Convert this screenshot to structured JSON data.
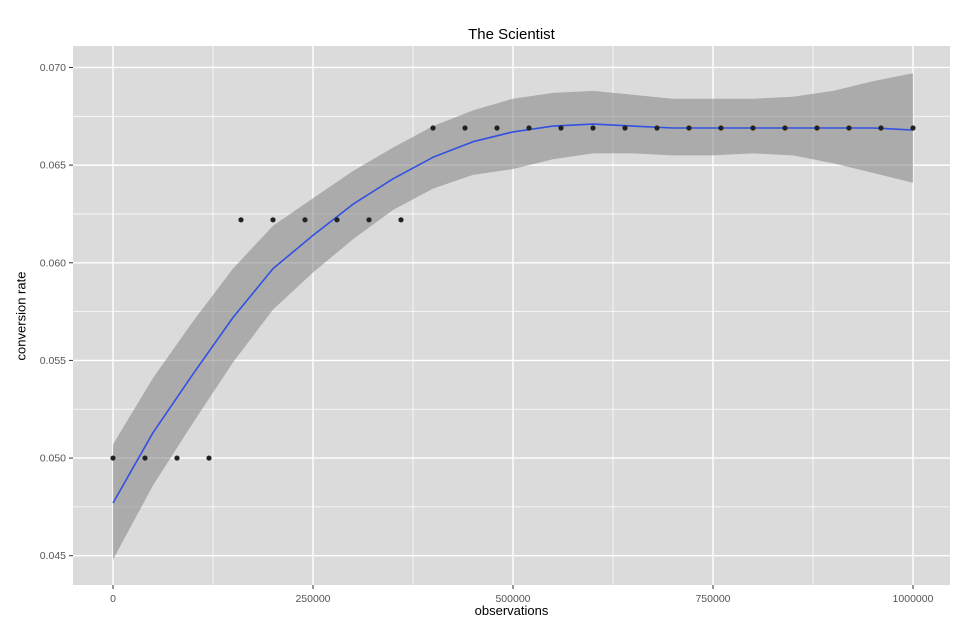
{
  "chart_data": {
    "type": "scatter",
    "title": "The Scientist",
    "xlabel": "observations",
    "ylabel": "conversion rate",
    "x_ticks": [
      0,
      250000,
      500000,
      750000,
      1000000
    ],
    "x_tick_labels": [
      "0",
      "250000",
      "500000",
      "750000",
      "1000000"
    ],
    "y_ticks": [
      0.045,
      0.05,
      0.055,
      0.06,
      0.065,
      0.07
    ],
    "y_tick_labels": [
      "0.045",
      "0.050",
      "0.055",
      "0.060",
      "0.065",
      "0.070"
    ],
    "x_minor_ticks": [
      125000,
      375000,
      625000,
      875000
    ],
    "y_minor_ticks": [
      0.0475,
      0.0525,
      0.0575,
      0.0625,
      0.0675
    ],
    "xlim": [
      -50000,
      1046250
    ],
    "ylim": [
      0.0435,
      0.0711
    ],
    "grid": true,
    "legend": "none",
    "points": {
      "x": [
        0,
        40000,
        80000,
        120000,
        160000,
        200000,
        240000,
        280000,
        320000,
        360000,
        400000,
        440000,
        480000,
        520000,
        560000,
        600000,
        640000,
        680000,
        720000,
        760000,
        800000,
        840000,
        880000,
        920000,
        960000,
        1000000
      ],
      "y": [
        0.05,
        0.05,
        0.05,
        0.05,
        0.0622,
        0.0622,
        0.0622,
        0.0622,
        0.0622,
        0.0622,
        0.0669,
        0.0669,
        0.0669,
        0.0669,
        0.0669,
        0.0669,
        0.0669,
        0.0669,
        0.0669,
        0.0669,
        0.0669,
        0.0669,
        0.0669,
        0.0669,
        0.0669,
        0.0669
      ]
    },
    "smooth": {
      "x": [
        0,
        50000,
        100000,
        150000,
        200000,
        250000,
        300000,
        350000,
        400000,
        450000,
        500000,
        550000,
        600000,
        650000,
        700000,
        750000,
        800000,
        850000,
        900000,
        950000,
        1000000
      ],
      "y": [
        0.0477,
        0.0513,
        0.0543,
        0.0572,
        0.0597,
        0.0614,
        0.063,
        0.0643,
        0.0654,
        0.0662,
        0.0667,
        0.067,
        0.0671,
        0.067,
        0.0669,
        0.0669,
        0.0669,
        0.0669,
        0.0669,
        0.0669,
        0.0668
      ],
      "upper": [
        0.0507,
        0.0541,
        0.057,
        0.0597,
        0.0619,
        0.0633,
        0.0647,
        0.0659,
        0.067,
        0.0678,
        0.0684,
        0.0687,
        0.0688,
        0.0686,
        0.0684,
        0.0684,
        0.0684,
        0.0685,
        0.0688,
        0.0693,
        0.0697
      ],
      "lower": [
        0.0448,
        0.0486,
        0.0518,
        0.0549,
        0.0576,
        0.0595,
        0.0612,
        0.0627,
        0.0638,
        0.0645,
        0.0648,
        0.0653,
        0.0656,
        0.0656,
        0.0655,
        0.0655,
        0.0656,
        0.0655,
        0.0651,
        0.0646,
        0.0641
      ]
    },
    "colors": {
      "background": "#ffffff",
      "panel": "#dbdbdb",
      "grid": "#ffffff",
      "ribbon": "#838383",
      "ribbon_opacity": 0.55,
      "line": "#3251e2",
      "point": "#222222",
      "tick_mark": "#333333",
      "tick_label": "#555555",
      "text": "#000000"
    }
  }
}
